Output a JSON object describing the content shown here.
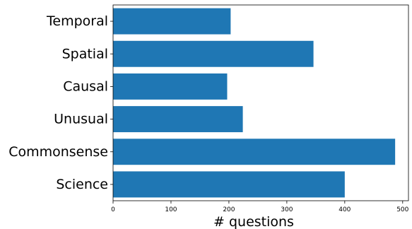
{
  "chart_data": {
    "type": "bar",
    "orientation": "horizontal",
    "categories": [
      "Temporal",
      "Spatial",
      "Causal",
      "Unusual",
      "Commonsense",
      "Science"
    ],
    "values": [
      203,
      346,
      197,
      224,
      487,
      400
    ],
    "xlabel": "# questions",
    "ylabel": "",
    "xlim": [
      0,
      510
    ],
    "xticks": [
      0,
      100,
      200,
      300,
      400,
      500
    ],
    "grid": false,
    "bar_color": "#1f77b4"
  }
}
